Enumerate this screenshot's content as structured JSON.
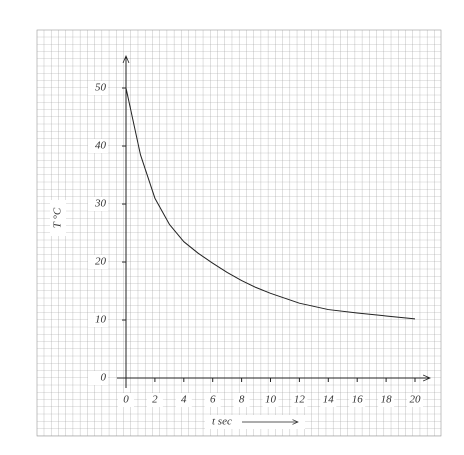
{
  "chart_data": {
    "type": "line",
    "x_label": "t sec",
    "y_label": "T °C",
    "x": [
      0,
      1,
      2,
      3,
      4,
      5,
      6,
      7,
      8,
      9,
      10,
      12,
      14,
      16,
      18,
      20
    ],
    "series": [
      {
        "color": "#222222",
        "values": [
          50,
          38.5,
          31,
          26.5,
          23.5,
          21.5,
          19.8,
          18.2,
          16.8,
          15.6,
          14.6,
          12.9,
          11.8,
          11.2,
          10.7,
          10.2
        ]
      }
    ],
    "xlim": [
      0,
      20
    ],
    "ylim": [
      0,
      50
    ],
    "xticks": [
      0,
      2,
      4,
      6,
      8,
      10,
      12,
      14,
      16,
      18,
      20
    ],
    "yticks": [
      0,
      10,
      20,
      30,
      40,
      50
    ]
  }
}
